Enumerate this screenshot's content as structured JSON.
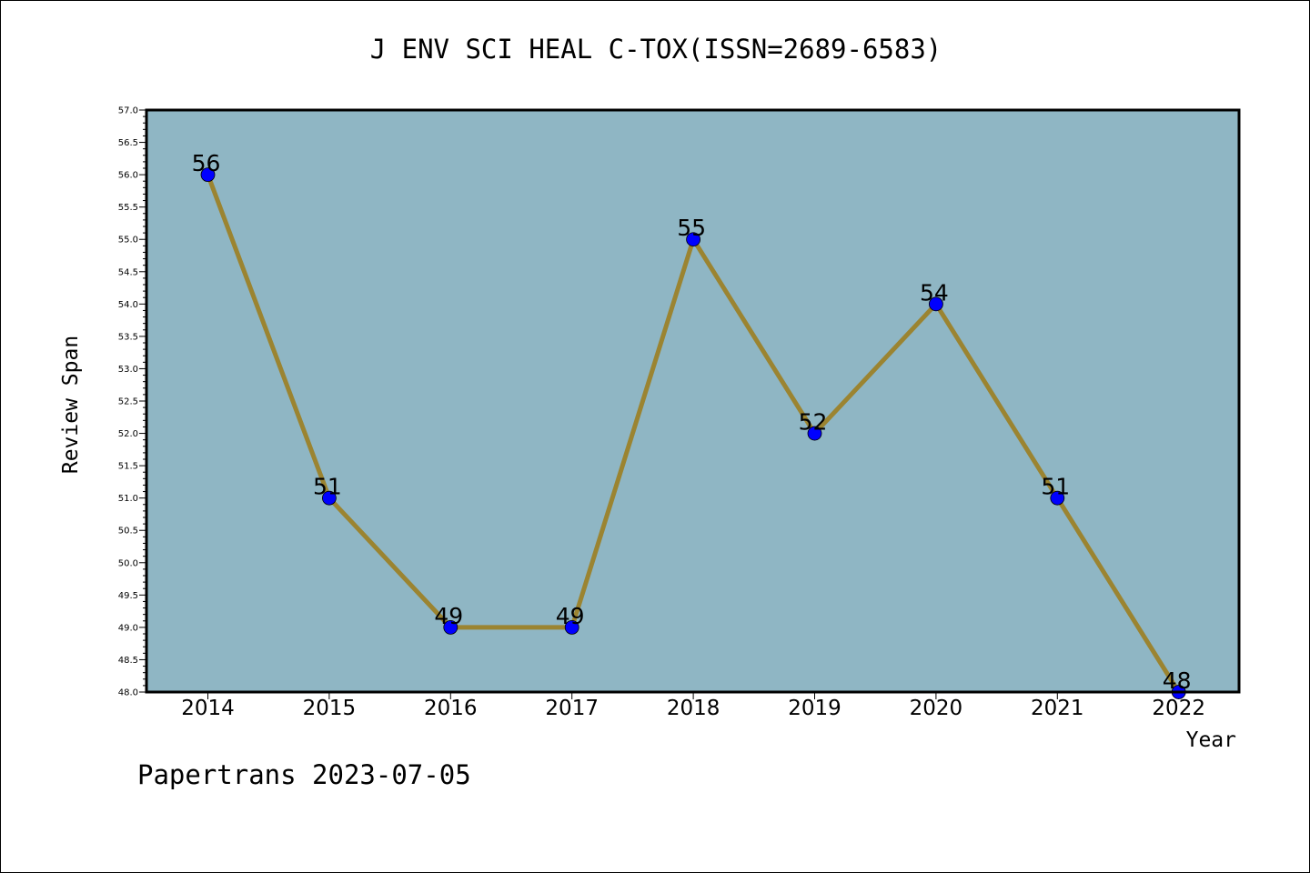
{
  "chart_data": {
    "type": "line",
    "title": "J ENV SCI HEAL C-TOX(ISSN=2689-6583)",
    "xlabel": "Year",
    "ylabel": "Review Span",
    "categories": [
      "2014",
      "2015",
      "2016",
      "2017",
      "2018",
      "2019",
      "2020",
      "2021",
      "2022"
    ],
    "values": [
      56,
      51,
      49,
      49,
      55,
      52,
      54,
      51,
      48
    ],
    "data_labels": [
      "56",
      "51",
      "49",
      "49",
      "55",
      "52",
      "54",
      "51",
      "48"
    ],
    "ylim": [
      48.0,
      57.0
    ],
    "yticks": [
      "48.0",
      "48.5",
      "49.0",
      "49.5",
      "50.0",
      "50.5",
      "51.0",
      "51.5",
      "52.0",
      "52.5",
      "53.0",
      "53.5",
      "54.0",
      "54.5",
      "55.0",
      "55.5",
      "56.0",
      "56.5",
      "57.0"
    ],
    "grid": false,
    "colors": {
      "plot_background": "#8fb6c4",
      "line": "#9b8431",
      "marker": "#0000ff"
    }
  },
  "footer": "Papertrans 2023-07-05"
}
